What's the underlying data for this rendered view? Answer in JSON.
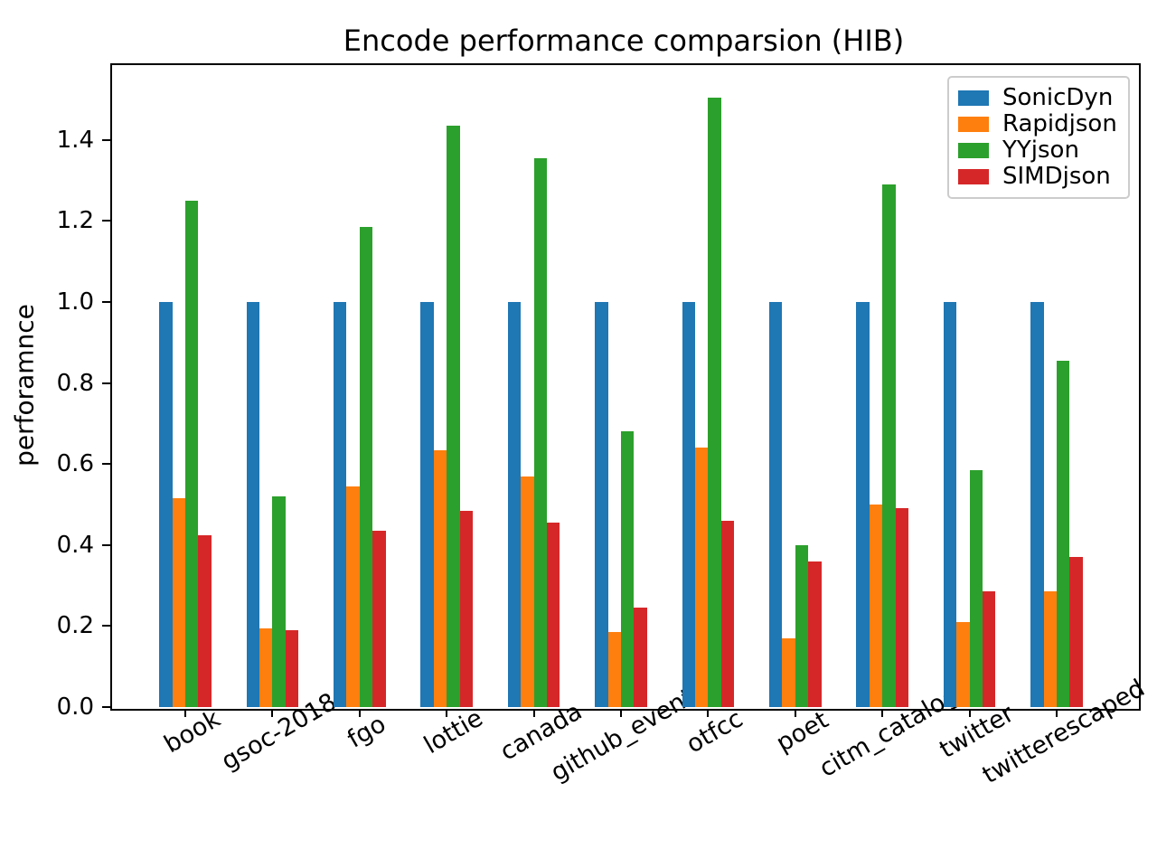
{
  "figure": {
    "title": "Encode performance comparsion (HIB)",
    "ylabel": "perforamnce"
  },
  "chart_data": {
    "type": "bar",
    "title": "Encode performance comparsion (HIB)",
    "xlabel": "",
    "ylabel": "perforamnce",
    "categories": [
      "book",
      "gsoc-2018",
      "fgo",
      "lottie",
      "canada",
      "github_events",
      "otfcc",
      "poet",
      "citm_catalog",
      "twitter",
      "twitterescaped"
    ],
    "series": [
      {
        "name": "SonicDyn",
        "color": "#1f77b4",
        "values": [
          1.0,
          1.0,
          1.0,
          1.0,
          1.0,
          1.0,
          1.0,
          1.0,
          1.0,
          1.0,
          1.0
        ]
      },
      {
        "name": "Rapidjson",
        "color": "#ff7f0e",
        "values": [
          0.515,
          0.195,
          0.545,
          0.635,
          0.57,
          0.185,
          0.64,
          0.17,
          0.5,
          0.21,
          0.285
        ]
      },
      {
        "name": "YYjson",
        "color": "#2ca02c",
        "values": [
          1.25,
          0.52,
          1.185,
          1.435,
          1.355,
          0.68,
          1.505,
          0.4,
          1.29,
          0.585,
          0.855
        ]
      },
      {
        "name": "SIMDjson",
        "color": "#d62728",
        "values": [
          0.425,
          0.19,
          0.435,
          0.485,
          0.455,
          0.245,
          0.46,
          0.36,
          0.49,
          0.285,
          0.37
        ]
      }
    ],
    "yticks": [
      0.0,
      0.2,
      0.4,
      0.6,
      0.8,
      1.0,
      1.2,
      1.4
    ],
    "ylim": [
      0,
      1.59
    ],
    "xtick_rotation_deg": 30,
    "grid": false,
    "legend_position": "upper right",
    "legend_entries": [
      "SonicDyn",
      "Rapidjson",
      "YYjson",
      "SIMDjson"
    ]
  }
}
